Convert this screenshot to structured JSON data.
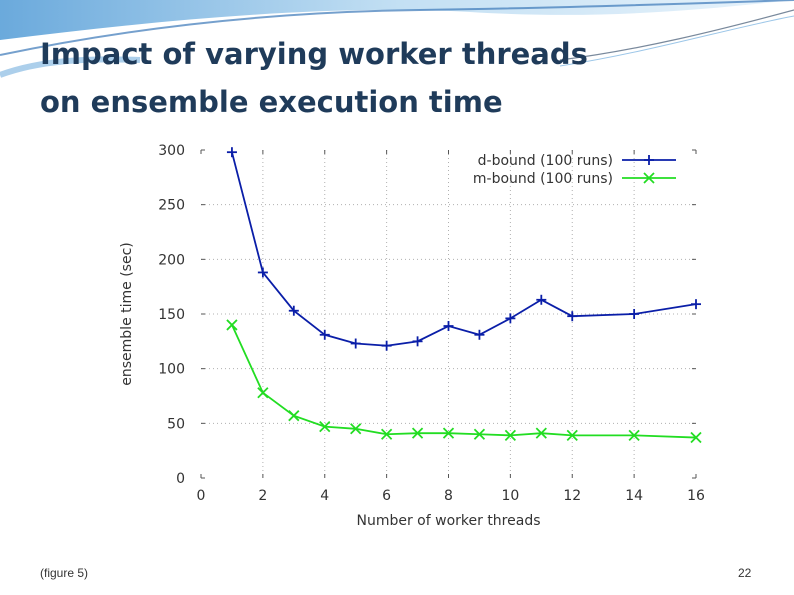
{
  "slide": {
    "title_line1": "Impact of varying worker threads",
    "title_line2": "on ensemble execution time",
    "caption": "(figure 5)",
    "page_number": "22"
  },
  "chart_data": {
    "type": "line",
    "title": "",
    "xlabel": "Number of worker threads",
    "ylabel": "ensemble time (sec)",
    "xlim": [
      0,
      16
    ],
    "ylim": [
      0,
      300
    ],
    "xticks": [
      0,
      2,
      4,
      6,
      8,
      10,
      12,
      14,
      16
    ],
    "yticks": [
      0,
      50,
      100,
      150,
      200,
      250,
      300
    ],
    "grid": true,
    "legend_position": "top-right",
    "series": [
      {
        "name": "d-bound (100 runs)",
        "color": "#0a1ea8",
        "marker": "plus",
        "x": [
          1,
          2,
          3,
          4,
          5,
          6,
          7,
          8,
          9,
          10,
          11,
          12,
          14,
          16
        ],
        "y": [
          298,
          188,
          153,
          131,
          123,
          121,
          125,
          139,
          131,
          146,
          163,
          148,
          150,
          159
        ]
      },
      {
        "name": "m-bound (100 runs)",
        "color": "#22dd22",
        "marker": "x",
        "x": [
          1,
          2,
          3,
          4,
          5,
          6,
          7,
          8,
          9,
          10,
          11,
          12,
          14,
          16
        ],
        "y": [
          140,
          78,
          57,
          47,
          45,
          40,
          41,
          41,
          40,
          39,
          41,
          39,
          39,
          37
        ]
      }
    ]
  }
}
